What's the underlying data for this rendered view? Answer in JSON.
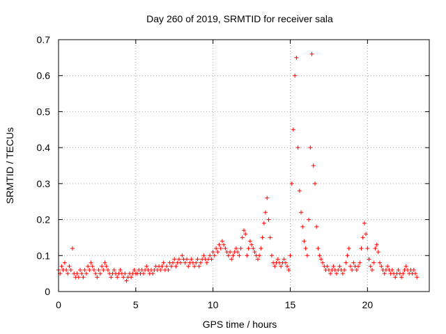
{
  "chart_data": {
    "type": "scatter",
    "title": "Day 260 of 2019, SRMTID for receiver sala",
    "xlabel": "GPS time / hours",
    "ylabel": "SRMTID / TECUs",
    "xlim": [
      0,
      24
    ],
    "ylim": [
      0,
      0.7
    ],
    "x_ticks": [
      0,
      5,
      10,
      15,
      20
    ],
    "x_tick_labels": [
      "0",
      "5",
      "10",
      "15",
      "20"
    ],
    "y_ticks": [
      0,
      0.1,
      0.2,
      0.3,
      0.4,
      0.5,
      0.6,
      0.7
    ],
    "y_tick_labels": [
      "0",
      "0.1",
      "0.2",
      "0.3",
      "0.4",
      "0.5",
      "0.6",
      "0.7"
    ],
    "grid": true,
    "marker": "+",
    "color": "#ff0000",
    "x_step_hours": 0.1,
    "x_start": 0,
    "series": [
      {
        "name": "SRMTID",
        "values": [
          0.06,
          0.05,
          0.07,
          0.06,
          0.08,
          0.06,
          0.05,
          0.07,
          0.06,
          0.12,
          0.05,
          0.04,
          0.05,
          0.04,
          0.06,
          0.05,
          0.04,
          0.06,
          0.05,
          0.07,
          0.06,
          0.08,
          0.07,
          0.06,
          0.05,
          0.04,
          0.06,
          0.05,
          0.07,
          0.06,
          0.08,
          0.07,
          0.06,
          0.05,
          0.04,
          0.05,
          0.06,
          0.05,
          0.04,
          0.05,
          0.06,
          0.05,
          0.04,
          0.05,
          0.03,
          0.04,
          0.05,
          0.04,
          0.05,
          0.06,
          0.05,
          0.05,
          0.06,
          0.05,
          0.06,
          0.05,
          0.06,
          0.07,
          0.06,
          0.05,
          0.06,
          0.05,
          0.06,
          0.07,
          0.06,
          0.07,
          0.06,
          0.07,
          0.08,
          0.06,
          0.07,
          0.06,
          0.08,
          0.07,
          0.08,
          0.09,
          0.07,
          0.08,
          0.09,
          0.08,
          0.1,
          0.09,
          0.08,
          0.09,
          0.07,
          0.08,
          0.09,
          0.08,
          0.07,
          0.08,
          0.09,
          0.07,
          0.08,
          0.09,
          0.1,
          0.09,
          0.08,
          0.09,
          0.1,
          0.09,
          0.11,
          0.1,
          0.12,
          0.11,
          0.13,
          0.12,
          0.14,
          0.13,
          0.12,
          0.11,
          0.1,
          0.11,
          0.09,
          0.1,
          0.11,
          0.12,
          0.11,
          0.1,
          0.12,
          0.15,
          0.17,
          0.16,
          0.1,
          0.12,
          0.14,
          0.13,
          0.12,
          0.11,
          0.1,
          0.09,
          0.1,
          0.12,
          0.15,
          0.19,
          0.22,
          0.26,
          0.2,
          0.15,
          0.1,
          0.08,
          0.07,
          0.08,
          0.09,
          0.08,
          0.07,
          0.08,
          0.09,
          0.08,
          0.07,
          0.06,
          0.1,
          0.3,
          0.45,
          0.6,
          0.65,
          0.4,
          0.28,
          0.22,
          0.18,
          0.14,
          0.12,
          0.1,
          0.2,
          0.4,
          0.66,
          0.35,
          0.3,
          0.18,
          0.12,
          0.1,
          0.09,
          0.08,
          0.07,
          0.06,
          0.07,
          0.06,
          0.05,
          0.06,
          0.07,
          0.06,
          0.05,
          0.06,
          0.07,
          0.06,
          0.05,
          0.06,
          0.08,
          0.1,
          0.12,
          0.07,
          0.06,
          0.08,
          0.07,
          0.06,
          0.07,
          0.08,
          0.12,
          0.15,
          0.19,
          0.16,
          0.12,
          0.09,
          0.07,
          0.06,
          0.08,
          0.12,
          0.13,
          0.11,
          0.08,
          0.07,
          0.06,
          0.05,
          0.06,
          0.07,
          0.06,
          0.05,
          0.06,
          0.05,
          0.04,
          0.05,
          0.06,
          0.05,
          0.04,
          0.05,
          0.06,
          0.07,
          0.06,
          0.05,
          0.06,
          0.05,
          0.06,
          0.05,
          0.04
        ]
      }
    ]
  }
}
